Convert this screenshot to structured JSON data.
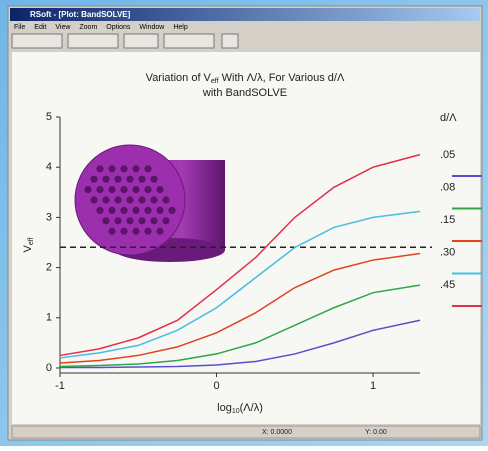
{
  "window": {
    "title": "RSoft - [Plot: BandSOLVE]",
    "menu": [
      "File",
      "Edit",
      "View",
      "Zoom",
      "Options",
      "Window",
      "Help"
    ],
    "status": [
      "X: 0.0000",
      "Y: 0.00"
    ]
  },
  "chart_data": {
    "type": "line",
    "title": {
      "pre": "Variation of V",
      "sub": "eff",
      "post": " With Λ/λ, For Various d/Λ",
      "line2": "with BandSOLVE"
    },
    "y_label": {
      "pre": "V",
      "sub": "eff"
    },
    "x_label": {
      "pre": "log",
      "sub": "10",
      "post": "(Λ/λ)"
    },
    "legend_title": "d/Λ",
    "x": [
      -1,
      -0.75,
      -0.5,
      -0.25,
      0,
      0.25,
      0.5,
      0.75,
      1,
      1.3
    ],
    "series": [
      {
        "name": ".05",
        "color": "#5a4fc8",
        "values": [
          0.01,
          0.01,
          0.02,
          0.03,
          0.06,
          0.13,
          0.28,
          0.5,
          0.75,
          0.95
        ]
      },
      {
        "name": ".08",
        "color": "#2fa64a",
        "values": [
          0.03,
          0.05,
          0.08,
          0.15,
          0.28,
          0.5,
          0.85,
          1.2,
          1.5,
          1.65
        ]
      },
      {
        "name": ".15",
        "color": "#e0431e",
        "values": [
          0.1,
          0.15,
          0.25,
          0.42,
          0.7,
          1.1,
          1.6,
          1.95,
          2.15,
          2.28
        ]
      },
      {
        "name": ".30",
        "color": "#46bde6",
        "values": [
          0.2,
          0.3,
          0.45,
          0.75,
          1.2,
          1.8,
          2.4,
          2.8,
          3.0,
          3.12
        ]
      },
      {
        "name": ".45",
        "color": "#e0304a",
        "values": [
          0.25,
          0.38,
          0.6,
          0.95,
          1.56,
          2.2,
          3.0,
          3.6,
          4.0,
          4.25
        ]
      }
    ],
    "hline": 2.405,
    "xlim": [
      -1,
      1.3
    ],
    "ylim": [
      -0.1,
      5
    ],
    "xticks": [
      -1,
      0,
      1
    ],
    "yticks": [
      0,
      1,
      2,
      3,
      4,
      5
    ]
  }
}
